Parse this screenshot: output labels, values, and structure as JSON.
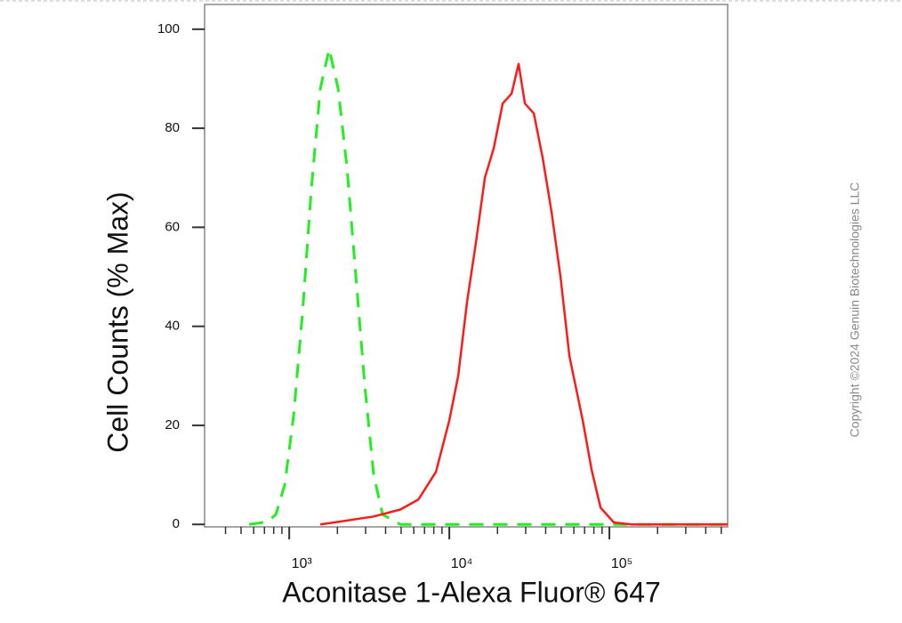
{
  "chart_data": {
    "type": "line",
    "x_label": "Aconitase 1-Alexa Fluor® 647",
    "y_label": "Cell Counts (% Max)",
    "copyright": "Copyright ©2024 Genuin Biotechnologies LLC",
    "x_scale": "log",
    "xlim": [
      296,
      548000
    ],
    "ylim": [
      -0.5,
      105
    ],
    "xticks": [
      {
        "value": 1000,
        "label": "10³"
      },
      {
        "value": 10000,
        "label": "10⁴"
      },
      {
        "value": 100000,
        "label": "10⁵"
      }
    ],
    "minor_xticks": [
      400,
      500,
      600,
      700,
      800,
      900,
      2000,
      3000,
      4000,
      5000,
      6000,
      7000,
      8000,
      9000,
      20000,
      30000,
      40000,
      50000,
      60000,
      70000,
      80000,
      90000,
      200000,
      300000,
      400000,
      500000
    ],
    "yticks": [
      0,
      20,
      40,
      60,
      80,
      100
    ],
    "series": [
      {
        "color": "#22ee22",
        "dash": true,
        "x": [
          562,
          727,
          825,
          938,
          1066,
          1212,
          1377,
          1565,
          1778,
          2021,
          2297,
          2610,
          2966,
          3371,
          3831,
          4948,
          100000,
          548000
        ],
        "values": [
          0,
          0.5,
          2,
          8,
          22,
          43,
          68,
          88,
          96,
          88,
          72,
          50,
          28,
          10,
          2,
          0,
          0,
          0
        ]
      },
      {
        "color": "#ff1a1a",
        "dash": false,
        "x": [
          1565,
          2021,
          3371,
          4948,
          6395,
          8254,
          10000,
          11370,
          12920,
          14680,
          16680,
          18960,
          21540,
          24480,
          27110,
          29660,
          33710,
          38310,
          43530,
          49480,
          56230,
          68130,
          77430,
          87990,
          106600,
          137700,
          548000
        ],
        "values": [
          0,
          0.5,
          1.6,
          3,
          5,
          10.6,
          21,
          30,
          45,
          57,
          70,
          76,
          85,
          87,
          93,
          85,
          83,
          74,
          63,
          50,
          34,
          21,
          11,
          3.4,
          0.4,
          0,
          0
        ]
      }
    ]
  }
}
